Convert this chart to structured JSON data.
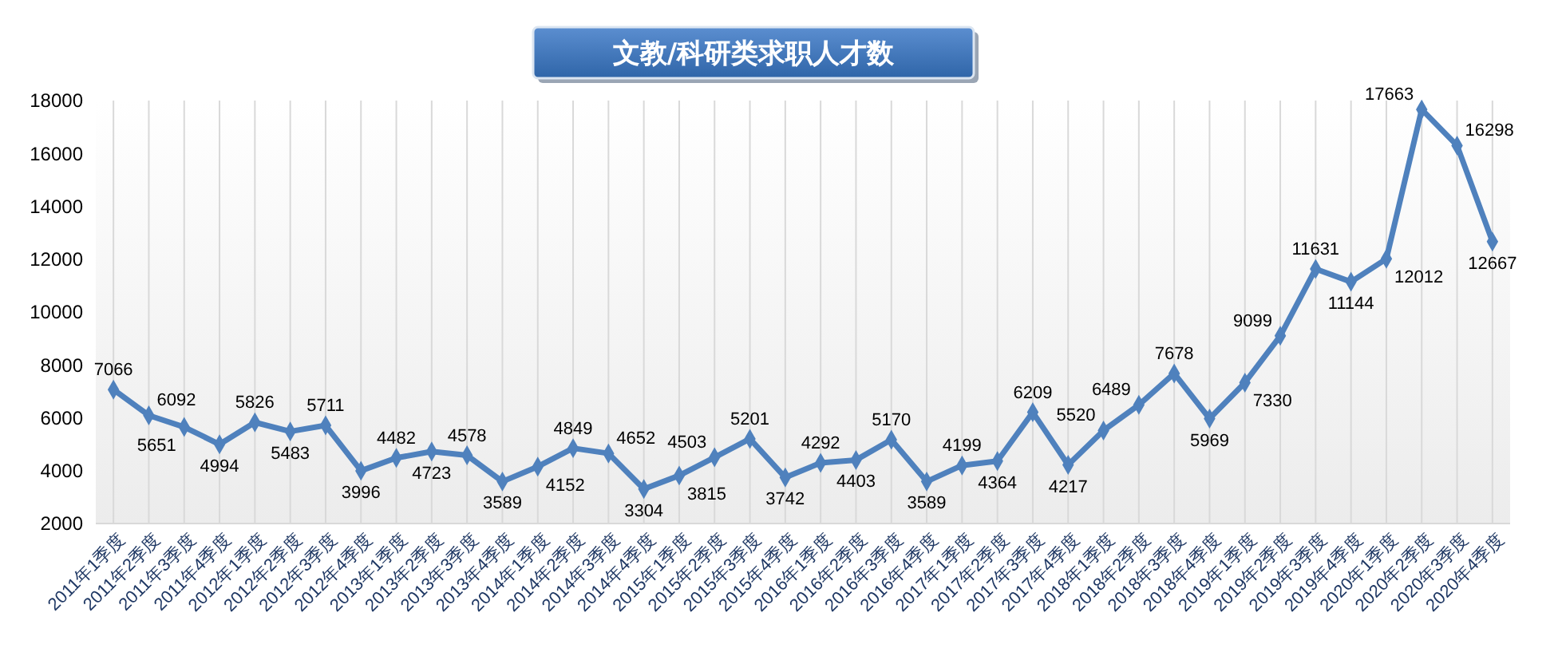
{
  "chart_data": {
    "type": "line",
    "title": "文教/科研类求职人才数",
    "categories": [
      "2011年1季度",
      "2011年2季度",
      "2011年3季度",
      "2011年4季度",
      "2012年1季度",
      "2012年2季度",
      "2012年3季度",
      "2012年4季度",
      "2013年1季度",
      "2013年2季度",
      "2013年3季度",
      "2013年4季度",
      "2014年1季度",
      "2014年2季度",
      "2014年3季度",
      "2014年4季度",
      "2015年1季度",
      "2015年2季度",
      "2015年3季度",
      "2015年4季度",
      "2016年1季度",
      "2016年2季度",
      "2016年3季度",
      "2016年4季度",
      "2017年1季度",
      "2017年2季度",
      "2017年3季度",
      "2017年4季度",
      "2018年1季度",
      "2018年2季度",
      "2018年3季度",
      "2018年4季度",
      "2019年1季度",
      "2019年2季度",
      "2019年3季度",
      "2019年4季度",
      "2020年1季度",
      "2020年2季度",
      "2020年3季度",
      "2020年4季度"
    ],
    "series": [
      {
        "color": "#4f81bd",
        "values": [
          7066,
          6092,
          5651,
          4994,
          5826,
          5483,
          5711,
          3996,
          4482,
          4723,
          4578,
          3589,
          4152,
          4849,
          4652,
          3304,
          3815,
          4503,
          5201,
          3742,
          4292,
          4403,
          5170,
          3589,
          4199,
          4364,
          6209,
          4217,
          5520,
          6489,
          7678,
          5969,
          7330,
          9099,
          11631,
          11144,
          12012,
          17663,
          16298,
          12667
        ]
      }
    ],
    "ylim": [
      2000,
      18000
    ],
    "yticks": [
      2000,
      4000,
      6000,
      8000,
      10000,
      12000,
      14000,
      16000,
      18000
    ],
    "grid": "x",
    "marker": "diamond",
    "line_style": "solid",
    "data_labels": true
  }
}
